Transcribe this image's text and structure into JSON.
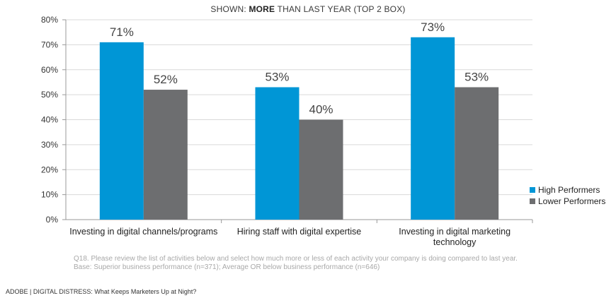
{
  "chart_data": {
    "type": "bar",
    "title_parts": [
      "SHOWN: ",
      "MORE",
      " THAN LAST YEAR (TOP 2 BOX)"
    ],
    "categories": [
      [
        "Investing in digital channels/programs"
      ],
      [
        "Hiring staff with digital expertise"
      ],
      [
        "Investing in digital marketing",
        "technology"
      ]
    ],
    "series": [
      {
        "name": "High Performers",
        "color": "#0096d6",
        "values": [
          71,
          53,
          73
        ],
        "labels": [
          "71%",
          "53%",
          "73%"
        ]
      },
      {
        "name": "Lower Performers",
        "color": "#6d6e70",
        "values": [
          52,
          40,
          53
        ],
        "labels": [
          "52%",
          "40%",
          "53%"
        ]
      }
    ],
    "y_ticks": [
      0,
      10,
      20,
      30,
      40,
      50,
      60,
      70,
      80
    ],
    "y_tick_labels": [
      "0%",
      "10%",
      "20%",
      "30%",
      "40%",
      "50%",
      "60%",
      "70%",
      "80%"
    ],
    "ylim": [
      0,
      80
    ],
    "grid": true,
    "legend_position": "right"
  },
  "footnote": {
    "line1": "Q18. Please review the list of activities below and select how much more or less of each activity your company is doing compared to last year.",
    "line2": "Base: Superior business performance (n=371); Average OR below business performance (n=646)"
  },
  "footer": {
    "text": "ADOBE | DIGITAL DISTRESS: What Keeps Marketers Up at Night?"
  }
}
